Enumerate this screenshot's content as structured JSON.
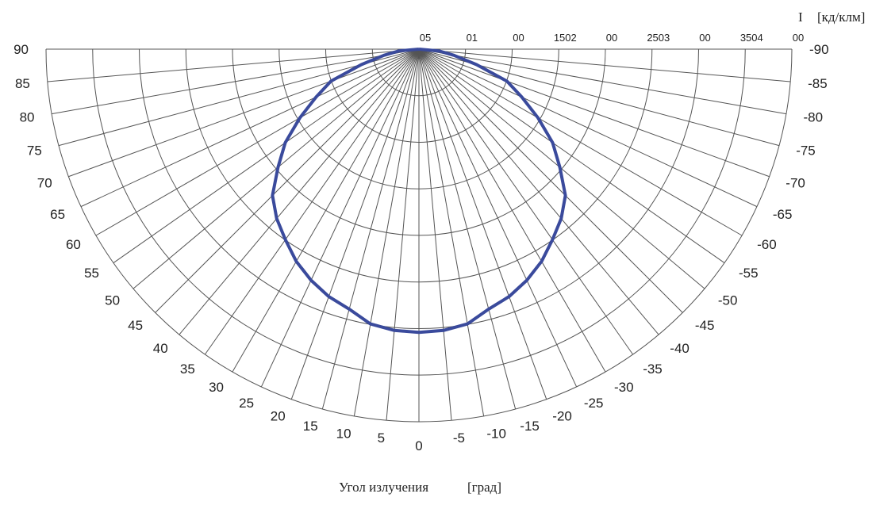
{
  "chart_data": {
    "type": "polar",
    "title": "",
    "intensity_label": "I",
    "intensity_unit": "[кд/клм]",
    "angle_label": "Угол излучения",
    "angle_unit": "[град]",
    "left_angle_ticks": [
      "90",
      "85",
      "80",
      "75",
      "70",
      "65",
      "60",
      "55",
      "50",
      "45",
      "40",
      "35",
      "30",
      "25",
      "20",
      "15",
      "10",
      "5",
      "0"
    ],
    "right_angle_ticks": [
      "-90",
      "-85",
      "-80",
      "-75",
      "-70",
      "-65",
      "-60",
      "-55",
      "-50",
      "-45",
      "-40",
      "-35",
      "-30",
      "-25",
      "-20",
      "-15",
      "-10",
      "-5"
    ],
    "radial_tick_labels": [
      "05",
      "01",
      "00",
      "1502",
      "00",
      "2503",
      "00",
      "3504",
      "00"
    ],
    "angle_range": [
      -90,
      90
    ],
    "radial_range": [
      0,
      450
    ],
    "grid": true,
    "series": [
      {
        "color": "#3a4a9c",
        "angles": [
          -90,
          -85,
          -80,
          -75,
          -70,
          -65,
          -60,
          -55,
          -50,
          -45,
          -40,
          -35,
          -30,
          -25,
          -20,
          -15,
          -10,
          -5,
          0,
          5,
          10,
          15,
          20,
          25,
          30,
          35,
          40,
          45,
          50,
          55,
          60,
          65,
          70,
          75,
          80,
          85,
          90
        ],
        "values": [
          0,
          24,
          43,
          72,
          113,
          137,
          166,
          197,
          222,
          250,
          267,
          281,
          296,
          308,
          318,
          325,
          337,
          341,
          342,
          341,
          337,
          325,
          318,
          308,
          296,
          281,
          267,
          250,
          222,
          197,
          166,
          137,
          113,
          72,
          43,
          24,
          0
        ]
      }
    ]
  }
}
